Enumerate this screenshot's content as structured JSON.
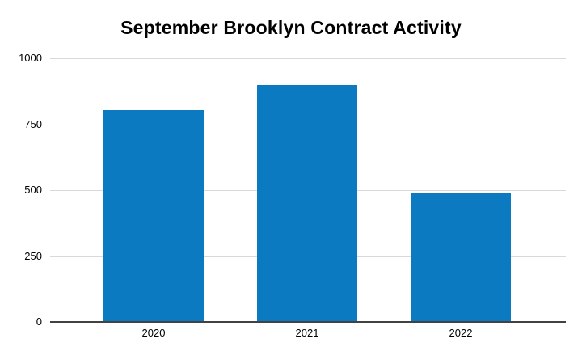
{
  "chart_data": {
    "type": "bar",
    "title": "September Brooklyn Contract Activity",
    "categories": [
      "2020",
      "2021",
      "2022"
    ],
    "values": [
      805,
      900,
      490
    ],
    "xlabel": "",
    "ylabel": "",
    "ylim": [
      0,
      1000
    ],
    "yticks": [
      0,
      250,
      500,
      750,
      1000
    ],
    "grid": "horizontal-only",
    "legend": "none",
    "colors": {
      "bar": "#0b7ac1",
      "gridline": "#d9d9d9",
      "axis_line": "#424242",
      "text": "#000000",
      "background": "#ffffff"
    }
  }
}
